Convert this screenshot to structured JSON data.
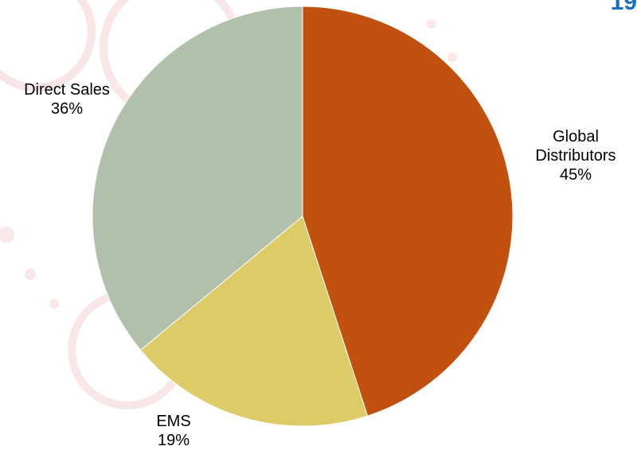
{
  "page": {
    "number": "19"
  },
  "chart_data": {
    "type": "pie",
    "title": "",
    "categories": [
      "Global Distributors",
      "EMS",
      "Direct Sales"
    ],
    "values": [
      45,
      19,
      36
    ],
    "value_labels": [
      "45%",
      "19%",
      "36%"
    ],
    "colors": [
      "#c2500f",
      "#dccb67",
      "#b0c0aa"
    ],
    "start_angle_deg": 0,
    "direction": "clockwise",
    "legend": "none"
  },
  "colors": {
    "page_number": "#1f6fc4",
    "decoration": "#f6dcdc"
  }
}
